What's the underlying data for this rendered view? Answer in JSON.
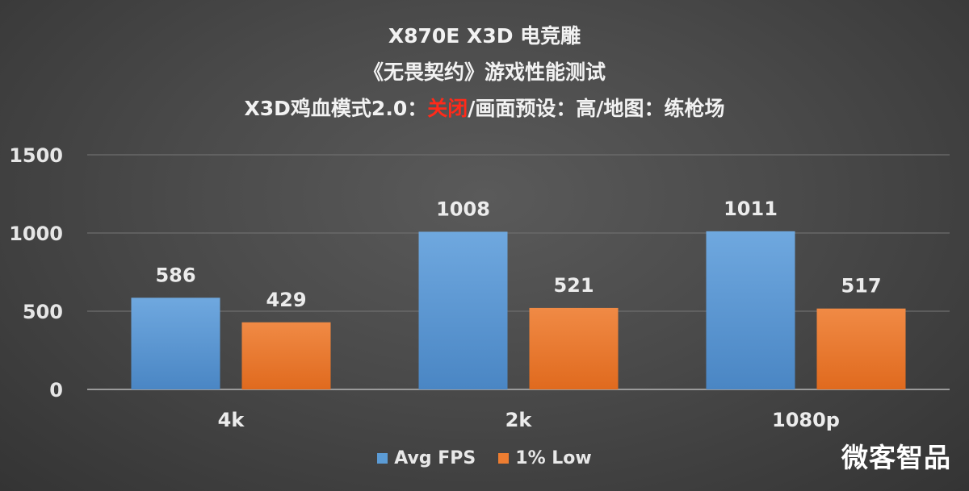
{
  "chart_data": {
    "type": "bar",
    "title_line1": "X870E X3D 电竞雕",
    "title_line2": "《无畏契约》游戏性能测试",
    "title_line3_pre": "X3D鸡血模式2.0：",
    "title_line3_highlight": "关闭",
    "title_line3_post": "/画面预设：高/地图：练枪场",
    "categories": [
      "4k",
      "2k",
      "1080p"
    ],
    "series": [
      {
        "name": "Avg FPS",
        "values": [
          586,
          1008,
          1011
        ],
        "color": "#5b9bd5"
      },
      {
        "name": "1% Low",
        "values": [
          429,
          521,
          517
        ],
        "color": "#ed7d31"
      }
    ],
    "yticks": [
      0,
      500,
      1000,
      1500
    ],
    "ylim": [
      0,
      1500
    ],
    "grid": true,
    "legend_position": "bottom"
  },
  "watermark": "微客智品"
}
